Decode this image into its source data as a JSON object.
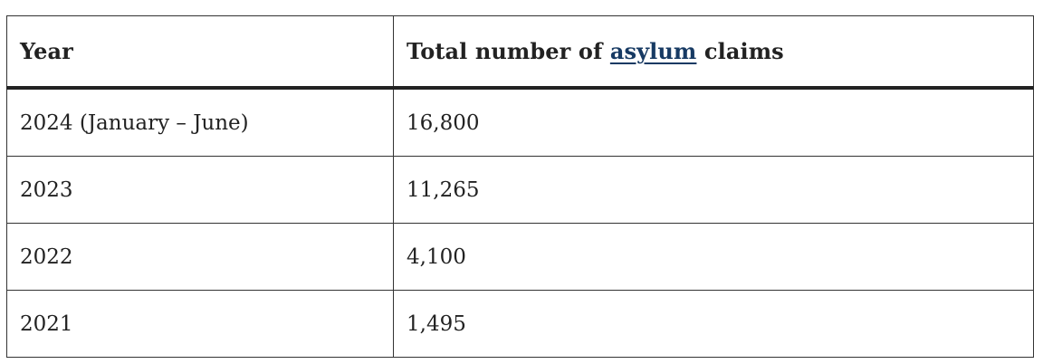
{
  "table": {
    "headers": {
      "year": "Year",
      "total_prefix": "Total number of ",
      "total_link": "asylum",
      "total_suffix": " claims"
    },
    "rows": [
      {
        "year": "2024 (January – June)",
        "total": "16,800"
      },
      {
        "year": "2023",
        "total": "11,265"
      },
      {
        "year": "2022",
        "total": "4,100"
      },
      {
        "year": "2021",
        "total": "1,495"
      }
    ]
  },
  "colors": {
    "text": "#222222",
    "link": "#173a63",
    "border": "#333333"
  }
}
